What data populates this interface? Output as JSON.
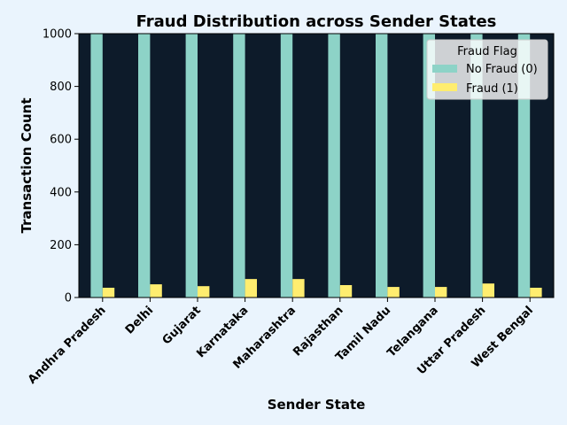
{
  "chart_data": {
    "type": "bar",
    "title": "Fraud Distribution across Sender States",
    "xlabel": "Sender State",
    "ylabel": "Transaction Count",
    "ylim": [
      0,
      1000
    ],
    "yticks": [
      0,
      200,
      400,
      600,
      800,
      1000
    ],
    "grid": false,
    "categories": [
      "Andhra Pradesh",
      "Delhi",
      "Gujarat",
      "Karnataka",
      "Maharashtra",
      "Rajasthan",
      "Tamil Nadu",
      "Telangana",
      "Uttar Pradesh",
      "West Bengal"
    ],
    "series": [
      {
        "name": "No Fraud (0)",
        "color": "#8dd3c7",
        "values": [
          1000,
          1000,
          1000,
          1000,
          1000,
          1000,
          1000,
          1000,
          1000,
          1000
        ]
      },
      {
        "name": "Fraud (1)",
        "color": "#ffed6f",
        "values": [
          37,
          50,
          43,
          70,
          70,
          47,
          40,
          40,
          53,
          37
        ]
      }
    ],
    "legend": {
      "title": "Fraud Flag",
      "placement": "top-right"
    },
    "colors": {
      "page_background": "#eaf4fd",
      "plot_background": "#0d1b2a"
    }
  }
}
